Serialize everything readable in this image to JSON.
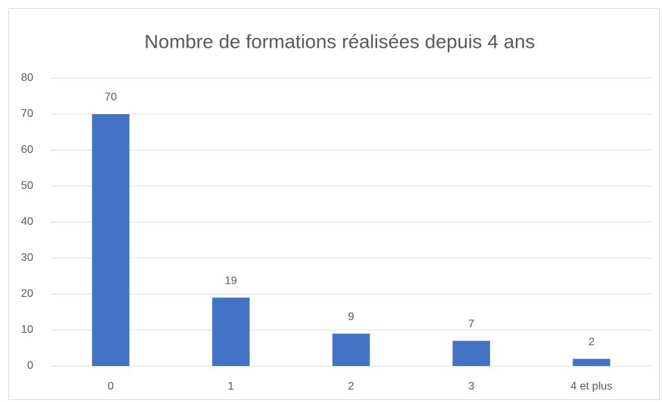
{
  "chart_data": {
    "type": "bar",
    "title": "Nombre de formations réalisées depuis 4 ans",
    "categories": [
      "0",
      "1",
      "2",
      "3",
      "4 et plus"
    ],
    "values": [
      70,
      19,
      9,
      7,
      2
    ],
    "color": "#4472c4",
    "ylim": [
      0,
      80
    ],
    "yticks": [
      0,
      10,
      20,
      30,
      40,
      50,
      60,
      70,
      80
    ],
    "grid": true
  }
}
